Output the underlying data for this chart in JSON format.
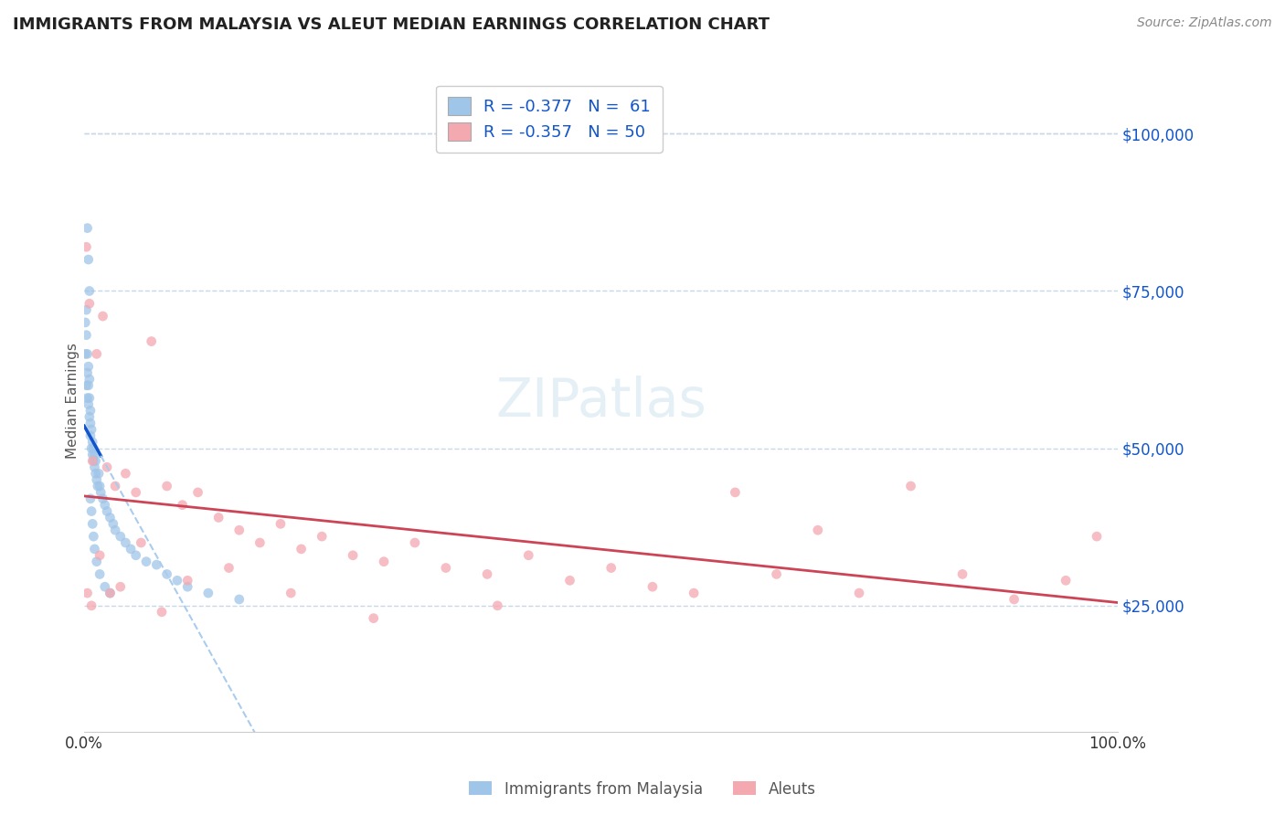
{
  "title": "IMMIGRANTS FROM MALAYSIA VS ALEUT MEDIAN EARNINGS CORRELATION CHART",
  "source_text": "Source: ZipAtlas.com",
  "ylabel": "Median Earnings",
  "xlim": [
    0.0,
    1.0
  ],
  "ylim": [
    5000,
    110000
  ],
  "x_tick_labels": [
    "0.0%",
    "100.0%"
  ],
  "y_tick_values": [
    25000,
    50000,
    75000,
    100000
  ],
  "y_tick_labels": [
    "$25,000",
    "$50,000",
    "$75,000",
    "$100,000"
  ],
  "legend_label1": "Immigrants from Malaysia",
  "legend_label2": "Aleuts",
  "color_blue": "#9fc5e8",
  "color_pink": "#f4a8b0",
  "color_blue_line": "#1155cc",
  "color_pink_line": "#cc4455",
  "color_dashed_line": "#aaccee",
  "grid_color": "#c8d8e8",
  "background_color": "#ffffff",
  "blue_scatter_x": [
    0.001,
    0.001,
    0.002,
    0.002,
    0.002,
    0.003,
    0.003,
    0.003,
    0.004,
    0.004,
    0.004,
    0.005,
    0.005,
    0.005,
    0.006,
    0.006,
    0.006,
    0.007,
    0.007,
    0.008,
    0.008,
    0.009,
    0.009,
    0.01,
    0.01,
    0.011,
    0.011,
    0.012,
    0.013,
    0.014,
    0.015,
    0.016,
    0.018,
    0.02,
    0.022,
    0.025,
    0.028,
    0.03,
    0.035,
    0.04,
    0.045,
    0.05,
    0.06,
    0.07,
    0.08,
    0.09,
    0.1,
    0.12,
    0.15,
    0.003,
    0.004,
    0.005,
    0.006,
    0.007,
    0.008,
    0.009,
    0.01,
    0.012,
    0.015,
    0.02,
    0.025
  ],
  "blue_scatter_y": [
    70000,
    65000,
    68000,
    60000,
    72000,
    62000,
    65000,
    58000,
    60000,
    63000,
    57000,
    55000,
    58000,
    61000,
    56000,
    54000,
    52000,
    50000,
    53000,
    51000,
    49000,
    48000,
    50000,
    47000,
    49000,
    46000,
    48000,
    45000,
    44000,
    46000,
    44000,
    43000,
    42000,
    41000,
    40000,
    39000,
    38000,
    37000,
    36000,
    35000,
    34000,
    33000,
    32000,
    31500,
    30000,
    29000,
    28000,
    27000,
    26000,
    85000,
    80000,
    75000,
    42000,
    40000,
    38000,
    36000,
    34000,
    32000,
    30000,
    28000,
    27000
  ],
  "pink_scatter_x": [
    0.002,
    0.005,
    0.008,
    0.012,
    0.018,
    0.022,
    0.03,
    0.04,
    0.05,
    0.065,
    0.08,
    0.095,
    0.11,
    0.13,
    0.15,
    0.17,
    0.19,
    0.21,
    0.23,
    0.26,
    0.29,
    0.32,
    0.35,
    0.39,
    0.43,
    0.47,
    0.51,
    0.55,
    0.59,
    0.63,
    0.67,
    0.71,
    0.75,
    0.8,
    0.85,
    0.9,
    0.95,
    0.98,
    0.003,
    0.007,
    0.015,
    0.025,
    0.035,
    0.055,
    0.075,
    0.1,
    0.14,
    0.2,
    0.28,
    0.4
  ],
  "pink_scatter_y": [
    82000,
    73000,
    48000,
    65000,
    71000,
    47000,
    44000,
    46000,
    43000,
    67000,
    44000,
    41000,
    43000,
    39000,
    37000,
    35000,
    38000,
    34000,
    36000,
    33000,
    32000,
    35000,
    31000,
    30000,
    33000,
    29000,
    31000,
    28000,
    27000,
    43000,
    30000,
    37000,
    27000,
    44000,
    30000,
    26000,
    29000,
    36000,
    27000,
    25000,
    33000,
    27000,
    28000,
    35000,
    24000,
    29000,
    31000,
    27000,
    23000,
    25000
  ],
  "title_fontsize": 13,
  "axis_label_fontsize": 11,
  "tick_fontsize": 12,
  "source_fontsize": 10
}
